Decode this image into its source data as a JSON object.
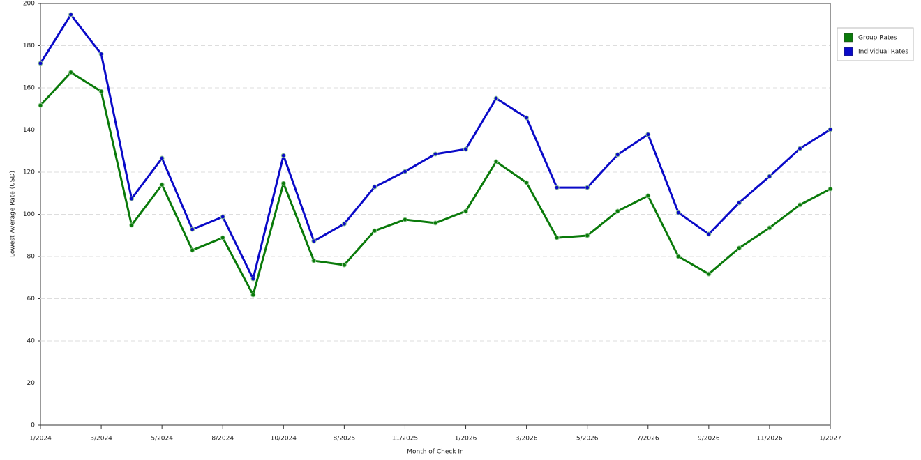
{
  "chart_data": {
    "type": "line",
    "x_label": "Month of Check In",
    "y_label": "Lowest Average Rate (USD)",
    "categories": [
      "1/2024",
      null,
      "3/2024",
      null,
      "5/2024",
      null,
      "8/2024",
      null,
      "10/2024",
      null,
      "8/2025",
      null,
      "11/2025",
      null,
      "1/2026",
      null,
      "3/2026",
      null,
      "5/2026",
      null,
      "7/2026",
      null,
      "9/2026",
      null,
      "11/2026",
      null,
      "1/2027"
    ],
    "series": [
      {
        "name": "Group Rates",
        "color": "#0a7a0a",
        "values": [
          151.7,
          167.3,
          158.3,
          94.9,
          114,
          83,
          88.9,
          61.8,
          114.7,
          78,
          76,
          92.2,
          97.5,
          95.9,
          101.5,
          125,
          115,
          88.9,
          89.9,
          101.5,
          108.8,
          80,
          71.7,
          84,
          93.6,
          104.5,
          112
        ]
      },
      {
        "name": "Individual Rates",
        "color": "#0a0ac8",
        "values": [
          171.6,
          194.7,
          176,
          107.4,
          126.6,
          92.9,
          98.8,
          69.4,
          127.9,
          87.3,
          95.5,
          113,
          120.3,
          128.6,
          130.9,
          155,
          145.8,
          112.7,
          112.7,
          128.3,
          137.9,
          100.8,
          90.6,
          105.5,
          118,
          131.2,
          140.2
        ]
      }
    ],
    "ylim": [
      0,
      200
    ],
    "yticks": [
      0,
      20,
      40,
      60,
      80,
      100,
      120,
      140,
      160,
      180,
      200
    ],
    "grid": true,
    "legend": "right"
  }
}
